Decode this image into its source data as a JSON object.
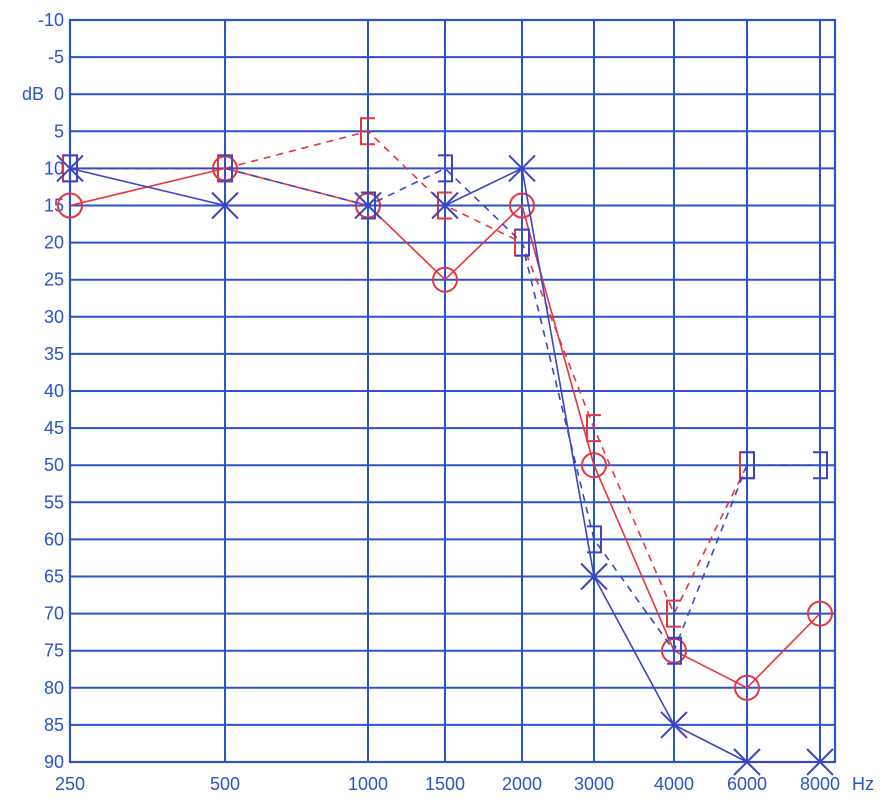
{
  "chart_data": {
    "type": "line",
    "x_scale": "octave",
    "x_ticks": [
      "250",
      "500",
      "1000",
      "1500",
      "2000",
      "3000",
      "4000",
      "6000",
      "8000"
    ],
    "x_unit": "Hz",
    "y_ticks": [
      "-10",
      "-5",
      "0",
      "5",
      "10",
      "15",
      "20",
      "25",
      "30",
      "35",
      "40",
      "45",
      "50",
      "55",
      "60",
      "65",
      "70",
      "75",
      "80",
      "85",
      "90"
    ],
    "y_unit": "dB",
    "ylim": [
      -10,
      90
    ],
    "y_inverted": true,
    "grid": true,
    "series": [
      {
        "color": "#e8343c",
        "dash": false,
        "marker": "circle",
        "x": [
          250,
          500,
          1000,
          1500,
          2000,
          3000,
          4000,
          6000,
          8000
        ],
        "values": [
          15,
          10,
          15,
          25,
          15,
          50,
          75,
          80,
          70
        ]
      },
      {
        "color": "#e8343c",
        "dash": true,
        "marker": "bracket-left",
        "x": [
          250,
          500,
          1000,
          1500,
          2000,
          3000,
          4000,
          6000
        ],
        "values": [
          10,
          10,
          5,
          15,
          20,
          45,
          70,
          50
        ]
      },
      {
        "color": "#3b45c2",
        "dash": false,
        "marker": "cross",
        "x": [
          250,
          500,
          1000,
          1500,
          2000,
          3000,
          4000,
          6000,
          8000
        ],
        "values": [
          10,
          15,
          15,
          15,
          10,
          65,
          85,
          90,
          90
        ]
      },
      {
        "color": "#3b45c2",
        "dash": true,
        "marker": "bracket-right",
        "x": [
          250,
          500,
          1000,
          1500,
          2000,
          3000,
          4000,
          6000,
          8000
        ],
        "values": [
          10,
          10,
          15,
          10,
          20,
          60,
          75,
          50,
          50
        ]
      }
    ]
  },
  "colors": {
    "grid": "#2a52c9",
    "labels": "#2a52c9"
  }
}
